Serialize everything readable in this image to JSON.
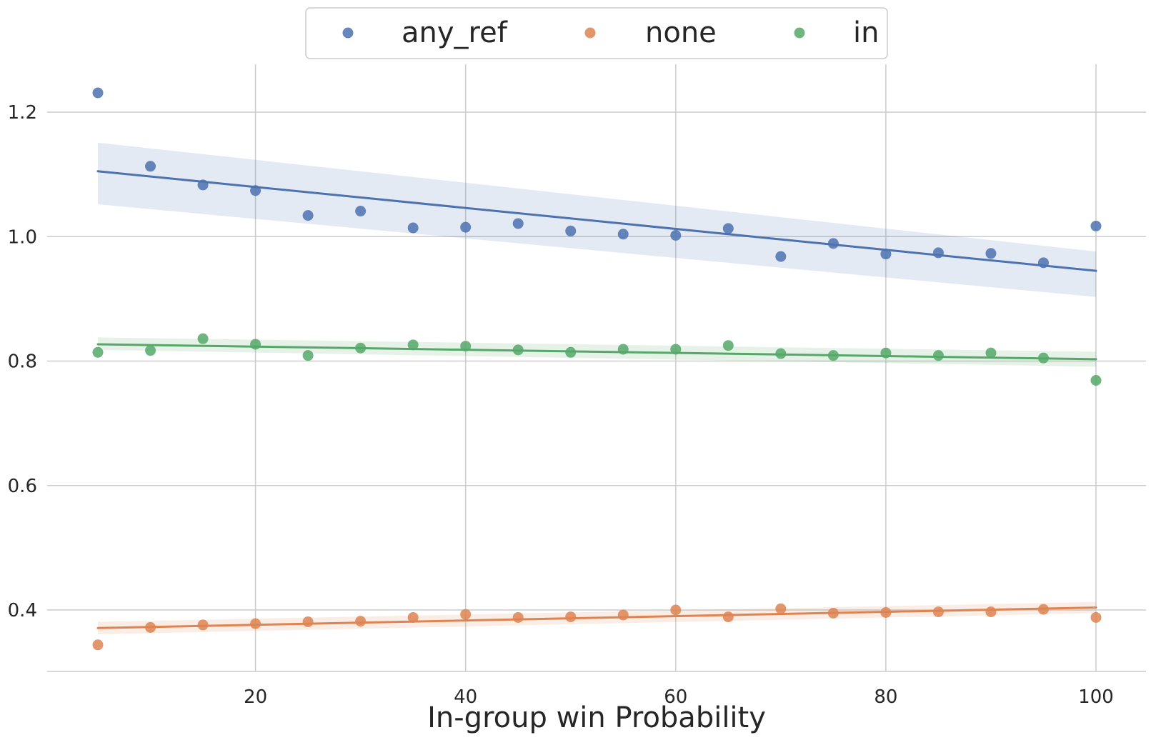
{
  "chart_data": {
    "type": "scatter",
    "title": "",
    "xlabel": "In-group win Probability",
    "ylabel": "",
    "xlim": [
      0,
      105
    ],
    "ylim": [
      0.3,
      1.275
    ],
    "grid": true,
    "legend_position": "top-center",
    "x_ticks": [
      20,
      40,
      60,
      80,
      100
    ],
    "y_ticks": [
      0.4,
      0.6,
      0.8,
      1.0,
      1.2
    ],
    "x": [
      5,
      10,
      15,
      20,
      25,
      30,
      35,
      40,
      45,
      50,
      55,
      60,
      65,
      70,
      75,
      80,
      85,
      90,
      95,
      100
    ],
    "series": [
      {
        "name": "any_ref",
        "color": "#4c72b0",
        "values": [
          1.231,
          1.113,
          1.083,
          1.074,
          1.034,
          1.041,
          1.014,
          1.015,
          1.021,
          1.009,
          1.004,
          1.002,
          1.013,
          0.968,
          0.989,
          0.972,
          0.974,
          0.973,
          0.958,
          1.017
        ],
        "fit": {
          "start": 1.105,
          "end": 0.945
        },
        "band_start": [
          1.052,
          1.151
        ],
        "band_end": [
          0.903,
          0.976
        ]
      },
      {
        "name": "none",
        "color": "#dd8452",
        "values": [
          0.344,
          0.372,
          0.376,
          0.378,
          0.381,
          0.382,
          0.388,
          0.393,
          0.388,
          0.389,
          0.392,
          0.4,
          0.389,
          0.402,
          0.395,
          0.396,
          0.397,
          0.397,
          0.401,
          0.388
        ],
        "fit": {
          "start": 0.371,
          "end": 0.404
        },
        "band_start": [
          0.361,
          0.381
        ],
        "band_end": [
          0.395,
          0.413
        ]
      },
      {
        "name": "in",
        "color": "#55a868",
        "values": [
          0.814,
          0.817,
          0.836,
          0.827,
          0.809,
          0.821,
          0.826,
          0.824,
          0.818,
          0.814,
          0.819,
          0.819,
          0.825,
          0.812,
          0.809,
          0.813,
          0.809,
          0.813,
          0.805,
          0.769
        ],
        "fit": {
          "start": 0.827,
          "end": 0.803
        },
        "band_start": [
          0.818,
          0.838
        ],
        "band_end": [
          0.791,
          0.815
        ]
      }
    ]
  }
}
